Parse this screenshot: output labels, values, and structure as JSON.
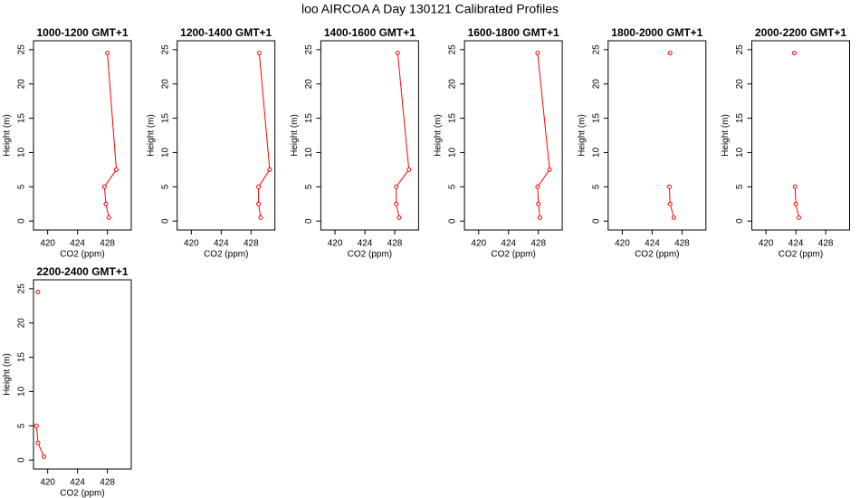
{
  "title": "loo AIRCOA A  Day 130121  Calibrated Profiles",
  "chart_data": [
    {
      "type": "line",
      "title": "1000-1200 GMT+1",
      "xlabel": "CO2 (ppm)",
      "ylabel": "Height (m)",
      "color": "#ff0000",
      "x": [
        428.2,
        427.8,
        427.6,
        429.2,
        428.0
      ],
      "values": [
        0.5,
        2.5,
        5,
        7.5,
        24.5
      ],
      "xlim": [
        418.1,
        431.2
      ],
      "xticks": [
        420,
        424,
        428
      ],
      "ylim": [
        -1.3,
        26.3
      ],
      "yticks": [
        0,
        5,
        10,
        15,
        20,
        25
      ]
    },
    {
      "type": "line",
      "title": "1200-1400 GMT+1",
      "xlabel": "CO2 (ppm)",
      "ylabel": "Height (m)",
      "color": "#ff0000",
      "x": [
        429.3,
        429.0,
        429.0,
        430.5,
        429.1
      ],
      "values": [
        0.5,
        2.5,
        5,
        7.5,
        24.5
      ],
      "xlim": [
        418.1,
        431.2
      ],
      "xticks": [
        420,
        424,
        428
      ],
      "ylim": [
        -1.3,
        26.3
      ],
      "yticks": [
        0,
        5,
        10,
        15,
        20,
        25
      ]
    },
    {
      "type": "line",
      "title": "1400-1600 GMT+1",
      "xlabel": "CO2 (ppm)",
      "ylabel": "Height (m)",
      "color": "#ff0000",
      "x": [
        428.6,
        428.2,
        428.2,
        429.9,
        428.4
      ],
      "values": [
        0.5,
        2.5,
        5,
        7.5,
        24.5
      ],
      "xlim": [
        418.1,
        431.2
      ],
      "xticks": [
        420,
        424,
        428
      ],
      "ylim": [
        -1.3,
        26.3
      ],
      "yticks": [
        0,
        5,
        10,
        15,
        20,
        25
      ]
    },
    {
      "type": "line",
      "title": "1600-1800 GMT+1",
      "xlabel": "CO2 (ppm)",
      "ylabel": "Height (m)",
      "color": "#ff0000",
      "x": [
        428.2,
        428.0,
        427.9,
        429.5,
        427.9
      ],
      "values": [
        0.5,
        2.5,
        5,
        7.5,
        24.5
      ],
      "xlim": [
        418.1,
        431.2
      ],
      "xticks": [
        420,
        424,
        428
      ],
      "ylim": [
        -1.3,
        26.3
      ],
      "yticks": [
        0,
        5,
        10,
        15,
        20,
        25
      ]
    },
    {
      "type": "line",
      "title": "1800-2000 GMT+1",
      "xlabel": "CO2 (ppm)",
      "ylabel": "Height (m)",
      "color": "#ff0000",
      "x": [
        426.9,
        426.4,
        426.3,
        null,
        426.4
      ],
      "values": [
        0.5,
        2.5,
        5,
        7.5,
        24.5
      ],
      "xlim": [
        418.1,
        431.2
      ],
      "xticks": [
        420,
        424,
        428
      ],
      "ylim": [
        -1.3,
        26.3
      ],
      "yticks": [
        0,
        5,
        10,
        15,
        20,
        25
      ]
    },
    {
      "type": "line",
      "title": "2000-2200 GMT+1",
      "xlabel": "CO2 (ppm)",
      "ylabel": "Height (m)",
      "color": "#ff0000",
      "x": [
        424.4,
        424.0,
        423.9,
        null,
        423.8
      ],
      "values": [
        0.5,
        2.5,
        5,
        7.5,
        24.5
      ],
      "xlim": [
        418.1,
        431.2
      ],
      "xticks": [
        420,
        424,
        428
      ],
      "ylim": [
        -1.3,
        26.3
      ],
      "yticks": [
        0,
        5,
        10,
        15,
        20,
        25
      ]
    },
    {
      "type": "line",
      "title": "2200-2400 GMT+1",
      "xlabel": "CO2 (ppm)",
      "ylabel": "Height (m)",
      "color": "#ff0000",
      "x": [
        419.5,
        418.7,
        418.5,
        null,
        418.7
      ],
      "values": [
        0.5,
        2.5,
        5,
        7.5,
        24.5
      ],
      "xlim": [
        418.1,
        431.2
      ],
      "xticks": [
        420,
        424,
        428
      ],
      "ylim": [
        -1.3,
        26.3
      ],
      "yticks": [
        0,
        5,
        10,
        15,
        20,
        25
      ]
    }
  ]
}
